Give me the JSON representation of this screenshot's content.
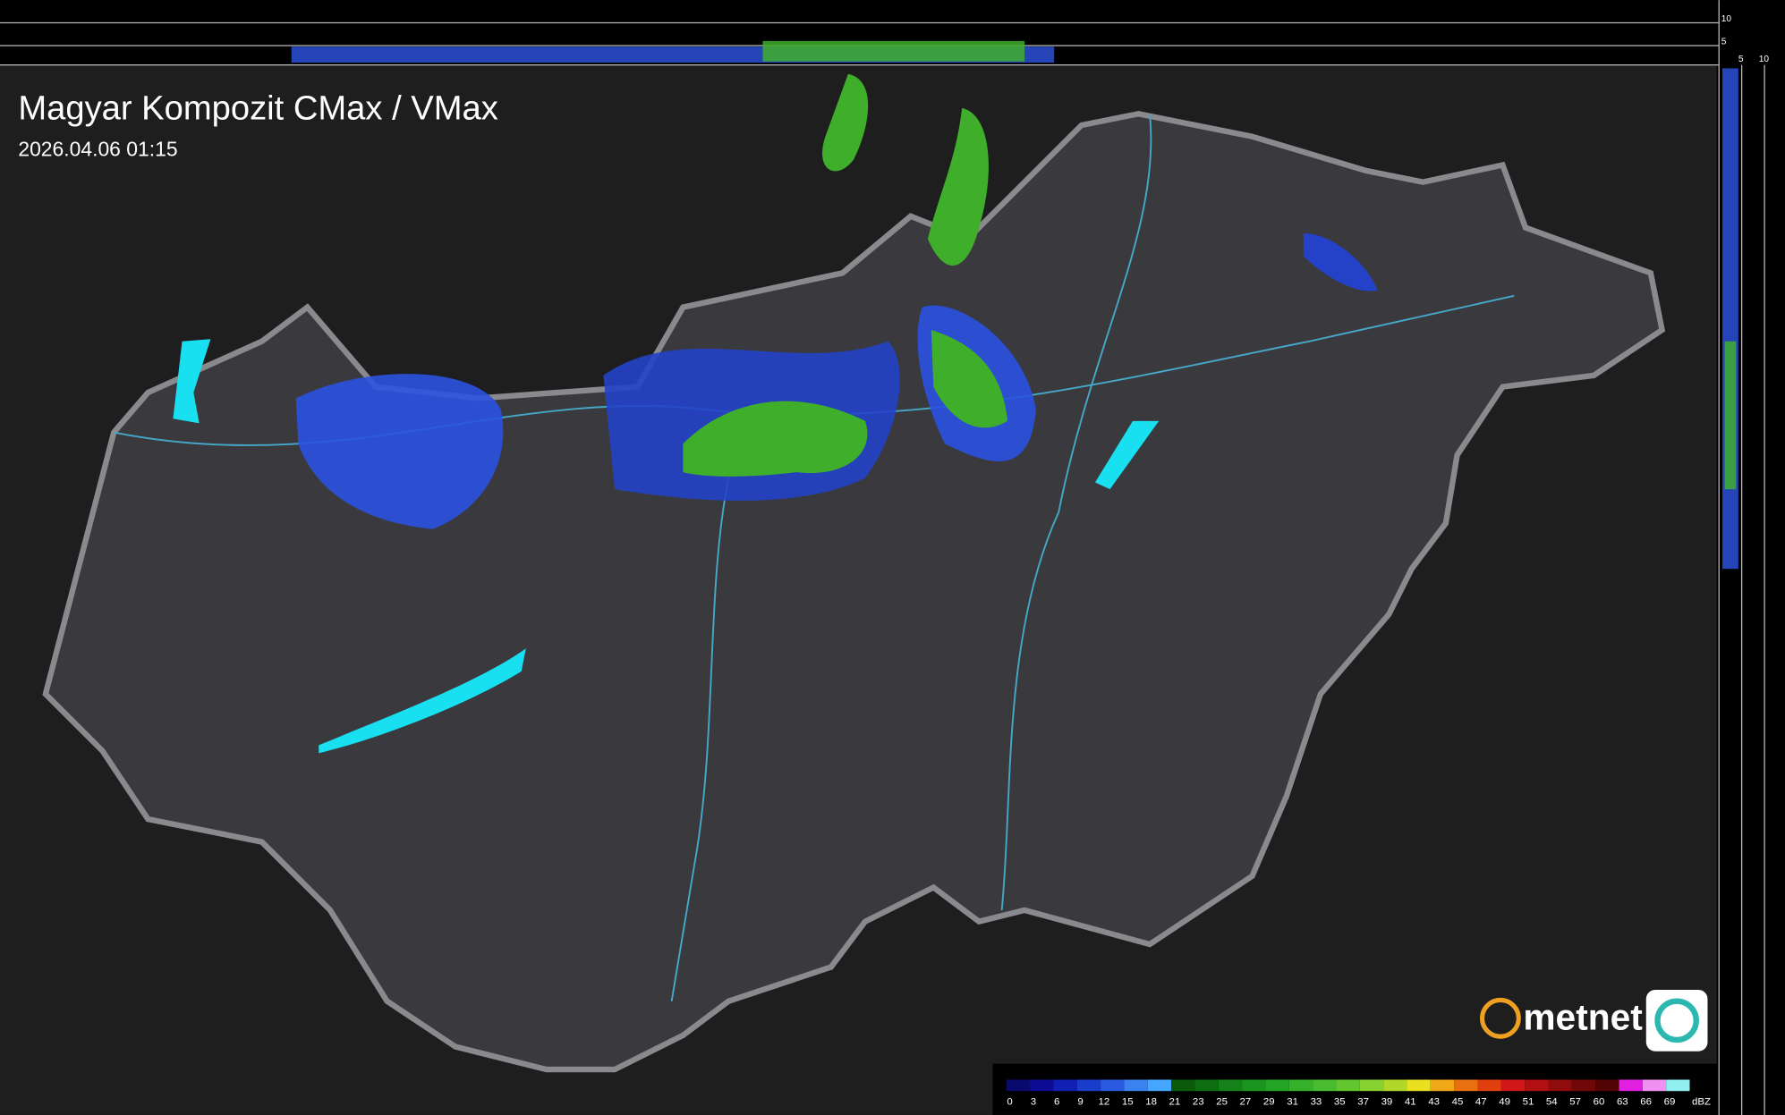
{
  "header": {
    "title": "Magyar Kompozit CMax / VMax",
    "timestamp": "2026.04.06 01:15"
  },
  "brand": "metnet",
  "profile_axis": {
    "top_labels": [
      "10",
      "5"
    ],
    "side_labels": [
      "5",
      "10"
    ]
  },
  "legend": {
    "unit": "dBZ",
    "steps": [
      {
        "label": "0",
        "color": "#0a0a6e"
      },
      {
        "label": "3",
        "color": "#0c0c96"
      },
      {
        "label": "6",
        "color": "#1020b4"
      },
      {
        "label": "9",
        "color": "#1a3ccc"
      },
      {
        "label": "12",
        "color": "#2a5ae0"
      },
      {
        "label": "15",
        "color": "#3a82f0"
      },
      {
        "label": "18",
        "color": "#44a6ff"
      },
      {
        "label": "21",
        "color": "#0a5a0a"
      },
      {
        "label": "23",
        "color": "#0e6e12"
      },
      {
        "label": "25",
        "color": "#148218"
      },
      {
        "label": "27",
        "color": "#1a961e"
      },
      {
        "label": "29",
        "color": "#24a424"
      },
      {
        "label": "31",
        "color": "#34b02a"
      },
      {
        "label": "33",
        "color": "#48bc2e"
      },
      {
        "label": "35",
        "color": "#62c630"
      },
      {
        "label": "37",
        "color": "#86d030"
      },
      {
        "label": "39",
        "color": "#b0d828"
      },
      {
        "label": "41",
        "color": "#e8e020"
      },
      {
        "label": "43",
        "color": "#f0a818"
      },
      {
        "label": "45",
        "color": "#e87010"
      },
      {
        "label": "47",
        "color": "#e04010"
      },
      {
        "label": "49",
        "color": "#d01818"
      },
      {
        "label": "51",
        "color": "#b01010"
      },
      {
        "label": "54",
        "color": "#900c0c"
      },
      {
        "label": "57",
        "color": "#700808"
      },
      {
        "label": "60",
        "color": "#500404"
      },
      {
        "label": "63",
        "color": "#e020e0"
      },
      {
        "label": "66",
        "color": "#f090f0"
      },
      {
        "label": "69",
        "color": "#90f0f0"
      }
    ]
  }
}
